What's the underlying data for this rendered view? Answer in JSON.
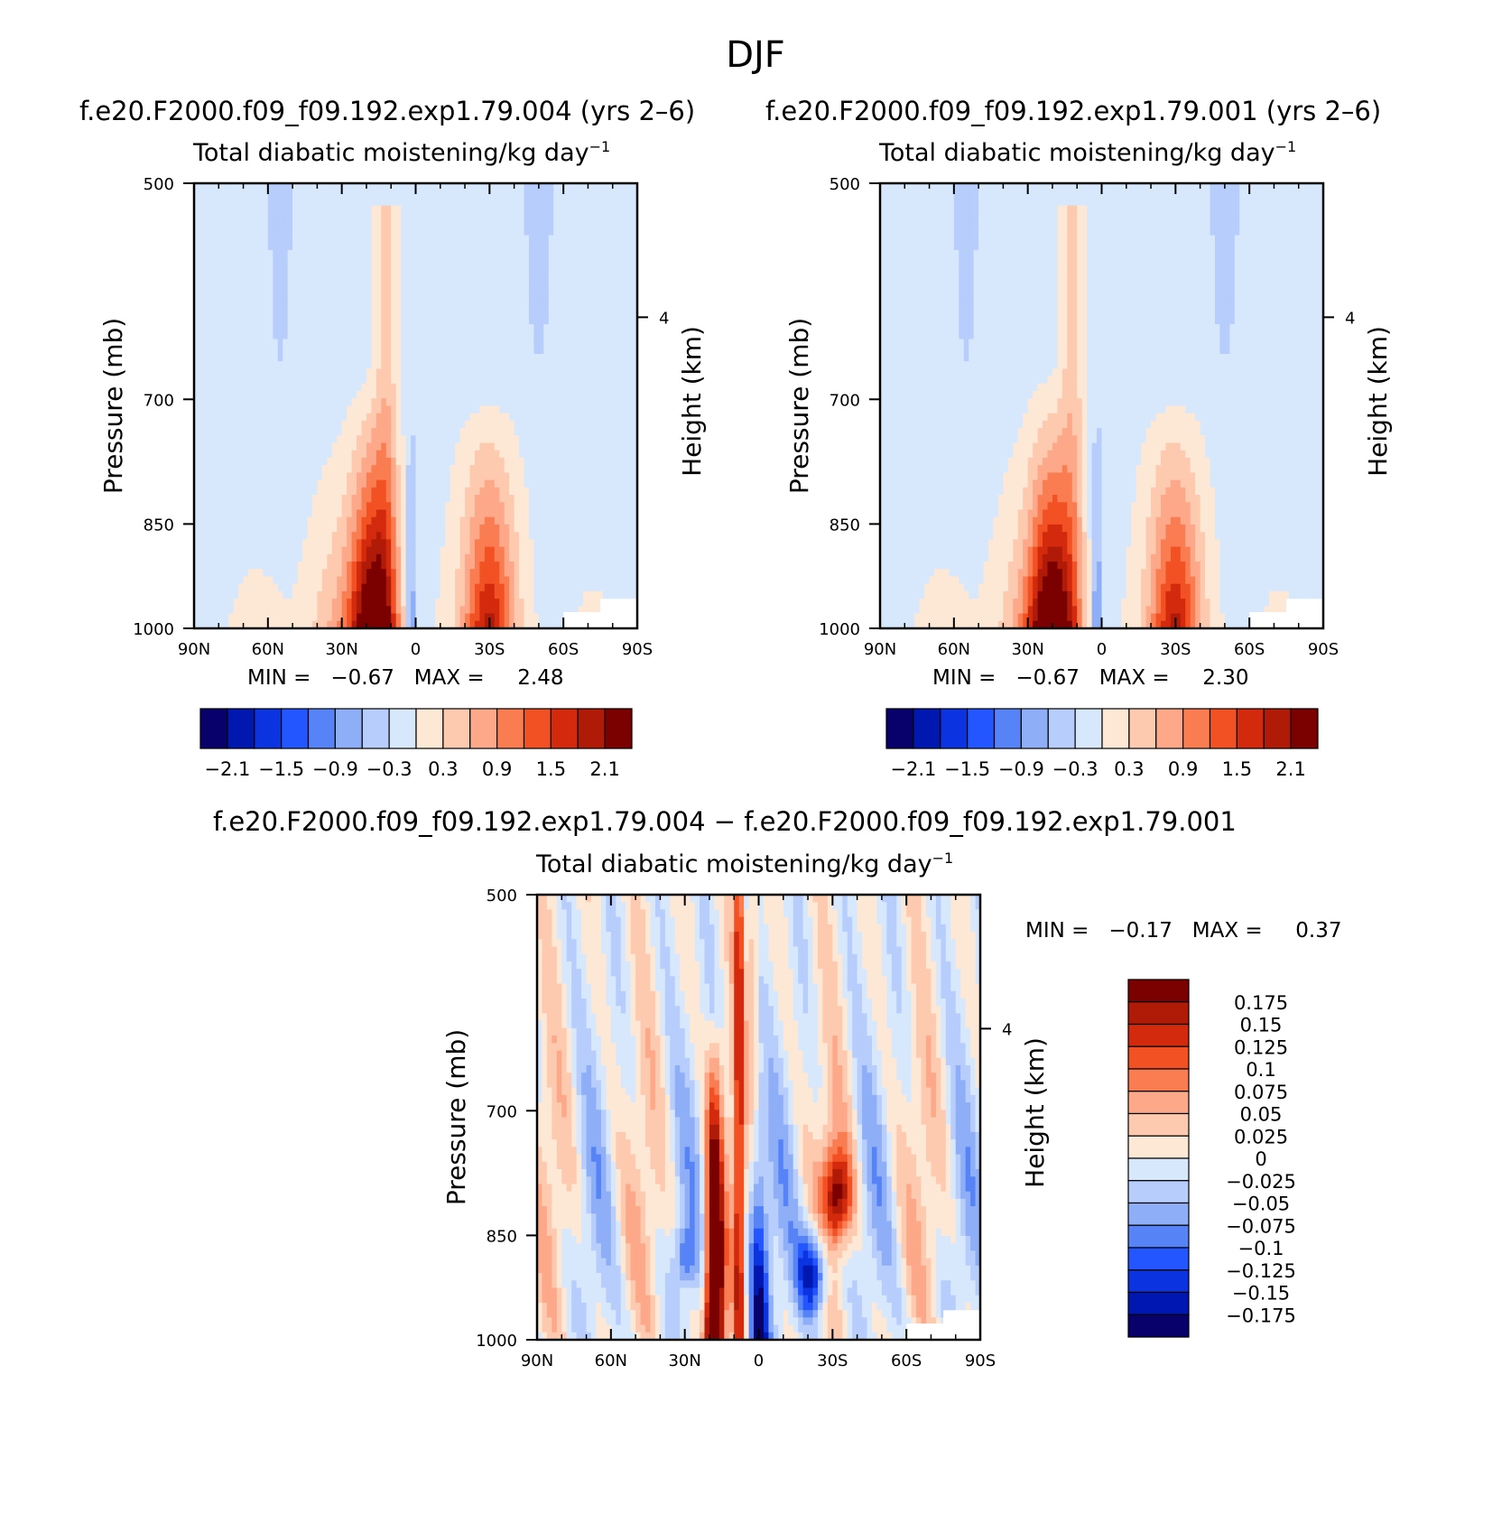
{
  "figure": {
    "title": "DJF"
  },
  "panels": [
    {
      "case": "f.e20.F2000.f09_f09.192.exp1.79.004 (yrs 2–6)",
      "subtitle": "Total diabatic moistening/kg day",
      "subtitle_exp": "−1",
      "ylabel": "Pressure (mb)",
      "y2label": "Height (km)",
      "min_label": "MIN =",
      "min_value": "−0.67",
      "max_label": "MAX =",
      "max_value": "2.48",
      "colorbar_labels": [
        "−2.1",
        "−1.5",
        "−0.9",
        "−0.3",
        "0.3",
        "0.9",
        "1.5",
        "2.1"
      ]
    },
    {
      "case": "f.e20.F2000.f09_f09.192.exp1.79.001 (yrs 2–6)",
      "subtitle": "Total diabatic moistening/kg day",
      "subtitle_exp": "−1",
      "ylabel": "Pressure (mb)",
      "y2label": "Height (km)",
      "min_label": "MIN =",
      "min_value": "−0.67",
      "max_label": "MAX =",
      "max_value": "2.30",
      "colorbar_labels": [
        "−2.1",
        "−1.5",
        "−0.9",
        "−0.3",
        "0.3",
        "0.9",
        "1.5",
        "2.1"
      ]
    },
    {
      "case": "f.e20.F2000.f09_f09.192.exp1.79.004 − f.e20.F2000.f09_f09.192.exp1.79.001",
      "subtitle": "Total diabatic moistening/kg day",
      "subtitle_exp": "−1",
      "ylabel": "Pressure (mb)",
      "y2label": "Height (km)",
      "min_label": "MIN =",
      "min_value": "−0.17",
      "max_label": "MAX =",
      "max_value": "0.37",
      "colorbar_labels": [
        "0.175",
        "0.15",
        "0.125",
        "0.1",
        "0.075",
        "0.05",
        "0.025",
        "0",
        "−0.025",
        "−0.05",
        "−0.075",
        "−0.1",
        "−0.125",
        "−0.15",
        "−0.175"
      ]
    }
  ],
  "colors": {
    "full_scale": [
      "#08006b",
      "#0018b0",
      "#0b33e0",
      "#2456ff",
      "#5683f6",
      "#8eaef7",
      "#b7cdfb",
      "#d8e8fc",
      "#fde8d6",
      "#fdcaaf",
      "#fca889",
      "#fa7d52",
      "#f25124",
      "#d32a0e",
      "#b01b08",
      "#7b0000"
    ],
    "diff_scale": [
      "#7b0000",
      "#b01b08",
      "#d32a0e",
      "#f25124",
      "#fa7d52",
      "#fca889",
      "#fdcaaf",
      "#fde8d6",
      "#d8e8fc",
      "#b7cdfb",
      "#8eaef7",
      "#5683f6",
      "#2456ff",
      "#0b33e0",
      "#0018b0",
      "#08006b"
    ]
  },
  "chart_data": [
    {
      "type": "heatmap",
      "title": "Total diabatic moistening/kg day−1",
      "xlabel": "",
      "ylabel": "Pressure (mb)",
      "y2label": "Height (km)",
      "x_ticklabels": [
        "90N",
        "60N",
        "30N",
        "0",
        "30S",
        "60S",
        "90S"
      ],
      "x_ticks": [
        90,
        60,
        30,
        0,
        -30,
        -60,
        -90
      ],
      "y_ticklabels": [
        "500",
        "700",
        "850",
        "1000"
      ],
      "y_ticks": [
        500,
        700,
        850,
        1000
      ],
      "y2_ticklabels": [
        "4"
      ],
      "y2_ticks": [
        4
      ],
      "ylim": [
        1000,
        500
      ],
      "xlim": [
        90,
        -90
      ],
      "min": -0.67,
      "max": 2.48,
      "contour_levels": [
        -2.1,
        -1.8,
        -1.5,
        -1.2,
        -0.9,
        -0.6,
        -0.3,
        0,
        0.3,
        0.6,
        0.9,
        1.2,
        1.5,
        1.8,
        2.1
      ],
      "features": [
        {
          "lat_center": 17,
          "p_center": 950,
          "value": 2.48,
          "kind": "max"
        },
        {
          "lat_center": -30,
          "p_center": 920,
          "value": 1.5,
          "kind": "local max"
        },
        {
          "lat_center": 55,
          "p_center": 600,
          "value": -0.4,
          "kind": "negative tongue"
        },
        {
          "lat_center": -50,
          "p_center": 600,
          "value": -0.4,
          "kind": "negative tongue"
        }
      ]
    },
    {
      "type": "heatmap",
      "title": "Total diabatic moistening/kg day−1",
      "xlabel": "",
      "ylabel": "Pressure (mb)",
      "y2label": "Height (km)",
      "x_ticklabels": [
        "90N",
        "60N",
        "30N",
        "0",
        "30S",
        "60S",
        "90S"
      ],
      "x_ticks": [
        90,
        60,
        30,
        0,
        -30,
        -60,
        -90
      ],
      "y_ticklabels": [
        "500",
        "700",
        "850",
        "1000"
      ],
      "y_ticks": [
        500,
        700,
        850,
        1000
      ],
      "y2_ticklabels": [
        "4"
      ],
      "y2_ticks": [
        4
      ],
      "ylim": [
        1000,
        500
      ],
      "xlim": [
        90,
        -90
      ],
      "min": -0.67,
      "max": 2.3,
      "contour_levels": [
        -2.1,
        -1.8,
        -1.5,
        -1.2,
        -0.9,
        -0.6,
        -0.3,
        0,
        0.3,
        0.6,
        0.9,
        1.2,
        1.5,
        1.8,
        2.1
      ],
      "features": [
        {
          "lat_center": 20,
          "p_center": 950,
          "value": 2.3,
          "kind": "max"
        },
        {
          "lat_center": -30,
          "p_center": 920,
          "value": 1.5,
          "kind": "local max"
        },
        {
          "lat_center": 55,
          "p_center": 600,
          "value": -0.4,
          "kind": "negative tongue"
        },
        {
          "lat_center": -50,
          "p_center": 600,
          "value": -0.4,
          "kind": "negative tongue"
        }
      ]
    },
    {
      "type": "heatmap",
      "title": "Total diabatic moistening/kg day−1",
      "xlabel": "",
      "ylabel": "Pressure (mb)",
      "y2label": "Height (km)",
      "x_ticklabels": [
        "90N",
        "60N",
        "30N",
        "0",
        "30S",
        "60S",
        "90S"
      ],
      "x_ticks": [
        90,
        60,
        30,
        0,
        -30,
        -60,
        -90
      ],
      "y_ticklabels": [
        "500",
        "700",
        "850",
        "1000"
      ],
      "y_ticks": [
        500,
        700,
        850,
        1000
      ],
      "y2_ticklabels": [
        "4"
      ],
      "y2_ticks": [
        4
      ],
      "ylim": [
        1000,
        500
      ],
      "xlim": [
        90,
        -90
      ],
      "min": -0.17,
      "max": 0.37,
      "contour_levels": [
        -0.175,
        -0.15,
        -0.125,
        -0.1,
        -0.075,
        -0.05,
        -0.025,
        0,
        0.025,
        0.05,
        0.075,
        0.1,
        0.125,
        0.15,
        0.175
      ],
      "features": [
        {
          "lat_center": 18,
          "p_center": 850,
          "value": 0.37,
          "kind": "max"
        },
        {
          "lat_center": -3,
          "p_center": 750,
          "value": -0.17,
          "kind": "min"
        },
        {
          "lat_center": -30,
          "p_center": 900,
          "value": -0.17,
          "kind": "min"
        },
        {
          "lat_center": -35,
          "p_center": 800,
          "value": 0.15,
          "kind": "local max"
        }
      ]
    }
  ]
}
